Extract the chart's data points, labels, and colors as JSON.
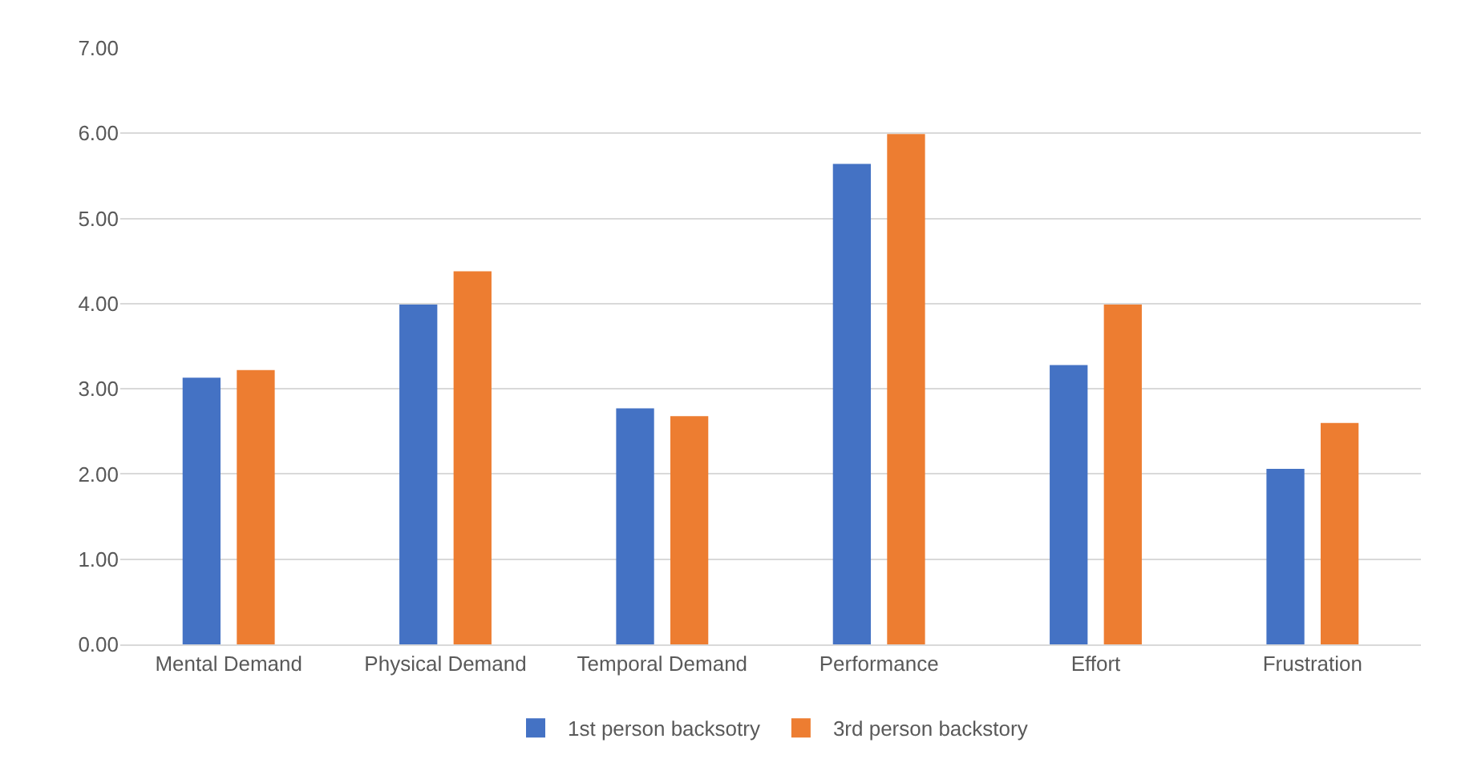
{
  "chart_data": {
    "type": "bar",
    "categories": [
      "Mental Demand",
      "Physical Demand",
      "Temporal Demand",
      "Performance",
      "Effort",
      "Frustration"
    ],
    "series": [
      {
        "name": "1st person backsotry",
        "color": "#4472c4",
        "values": [
          3.13,
          3.99,
          2.77,
          5.64,
          3.28,
          2.06
        ]
      },
      {
        "name": "3rd person backstory",
        "color": "#ed7d31",
        "values": [
          3.22,
          4.38,
          2.68,
          5.99,
          3.99,
          2.6
        ]
      }
    ],
    "ylim": [
      0,
      7
    ],
    "yticks": [
      {
        "value": 0,
        "label": "0.00"
      },
      {
        "value": 1,
        "label": "1.00"
      },
      {
        "value": 2,
        "label": "2.00"
      },
      {
        "value": 3,
        "label": "3.00"
      },
      {
        "value": 4,
        "label": "4.00"
      },
      {
        "value": 5,
        "label": "5.00"
      },
      {
        "value": 6,
        "label": "6.00"
      },
      {
        "value": 7,
        "label": "7.00"
      }
    ],
    "grid": "y",
    "legend": "bottom"
  }
}
